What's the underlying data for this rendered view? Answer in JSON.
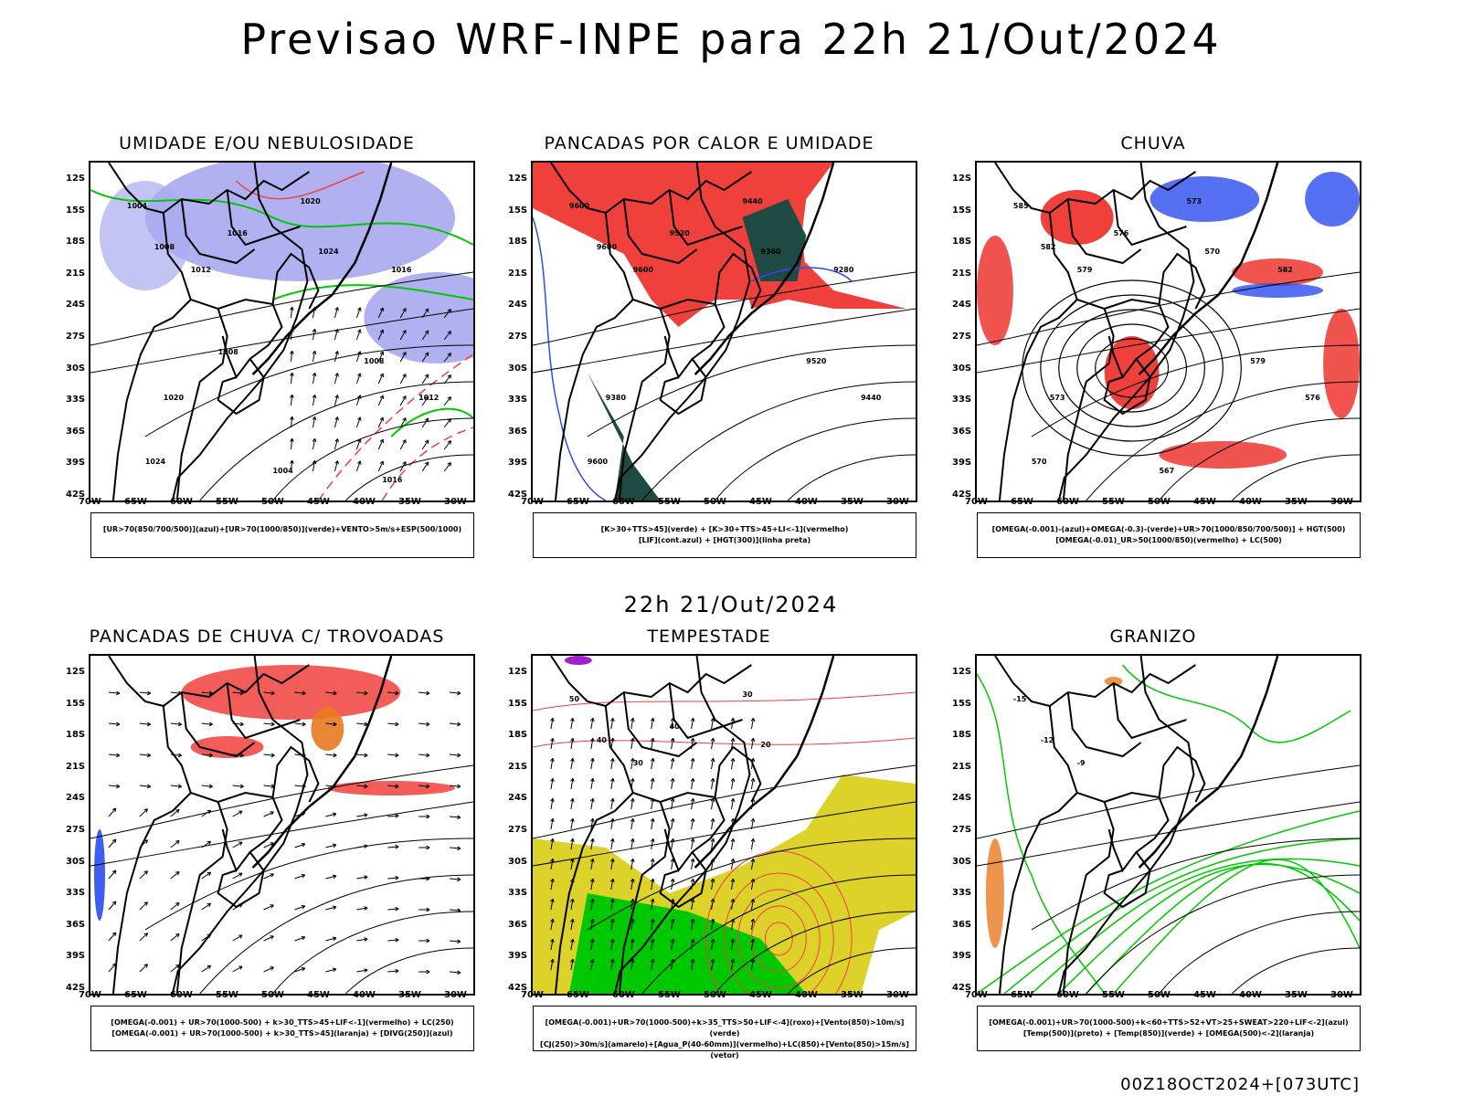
{
  "header": {
    "title": "Previsao WRF-INPE  para 22h 21/Out/2024",
    "mid_date": "22h 21/Out/2024",
    "footer": "00Z18OCT2024+[073UTC]"
  },
  "axes": {
    "lat_labels": [
      "12S",
      "15S",
      "18S",
      "21S",
      "24S",
      "27S",
      "30S",
      "33S",
      "36S",
      "39S",
      "42S"
    ],
    "lon_labels": [
      "70W",
      "65W",
      "60W",
      "55W",
      "50W",
      "45W",
      "40W",
      "35W",
      "30W"
    ]
  },
  "colors": {
    "blue_fill": "#a9a9f0",
    "red": "#f0403c",
    "green": "#00c800",
    "dark_teal": "#1f4a44",
    "blue": "#2a4cf0",
    "yellow": "#dcd22a",
    "orange": "#e87a20",
    "purple": "#a020d0"
  },
  "panels": [
    {
      "title": "UMIDADE E/OU NEBULOSIDADE",
      "legend_line1": "[UR>70(850/700/500)](azul)+[UR>70(1000/850)](verde)+VENTO>5m/s+ESP(500/1000)",
      "legend_line2": "",
      "contour_labels": [
        "1004",
        "1008",
        "1012",
        "1016",
        "1020",
        "1024",
        "1016",
        "1008",
        "1012",
        "1020",
        "1024",
        "1004",
        "1016",
        "1008"
      ]
    },
    {
      "title": "PANCADAS POR CALOR E UMIDADE",
      "legend_line1": "[K>30+TTS>45](verde) + [K>30+TTS>45+LI<-1](vermelho)",
      "legend_line2": "[LIF](cont.azul) + [HGT(300)](linha preta)",
      "contour_labels": [
        "9600",
        "9600",
        "9600",
        "9520",
        "9440",
        "9360",
        "9280",
        "9520",
        "9440",
        "9380",
        "9600"
      ]
    },
    {
      "title": "CHUVA",
      "legend_line1": "[OMEGA(-0.001)-(azul)+OMEGA(-0.3)-(verde)+UR>70(1000/850/700/500)] + HGT(500)",
      "legend_line2": "[OMEGA(-0.01)_UR>50(1000/850)(vermelho) + LC(500)",
      "contour_labels": [
        "585",
        "582",
        "579",
        "576",
        "573",
        "570",
        "582",
        "579",
        "576",
        "573",
        "570",
        "567"
      ]
    },
    {
      "title": "PANCADAS DE CHUVA C/ TROVOADAS",
      "legend_line1": "[OMEGA(-0.001) + UR>70(1000-500) + k>30_TTS>45+LIF<-1](vermelho) + LC(250)",
      "legend_line2": "[OMEGA(-0.001) + UR>70(1000-500) + k>30_TTS>45](laranja) + [DIVG(250)](azul)",
      "contour_labels": []
    },
    {
      "title": "TEMPESTADE",
      "legend_line1": "[OMEGA(-0.001)+UR>70(1000-500)+k>35_TTS>50+LIF<-4](roxo)+[Vento(850)>10m/s](verde)",
      "legend_line2": "[CJ(250)>30m/s](amarelo)+[Agua_P(40-60mm)](vermelho)+LC(850)+[Vento(850)>15m/s](vetor)",
      "contour_labels": [
        "50",
        "40",
        "30",
        "40",
        "30",
        "20"
      ]
    },
    {
      "title": "GRANIZO",
      "legend_line1": "[OMEGA(-0.001)+UR>70(1000-500)+k<60+TTS>52+VT>25+SWEAT>220+LIF<-2](azul)",
      "legend_line2": "[Temp(500)](preto) + [Temp(850)](verde) + [OMEGA(500)<-2](laranja)",
      "contour_labels": [
        "-15",
        "-12",
        "-9"
      ]
    }
  ]
}
